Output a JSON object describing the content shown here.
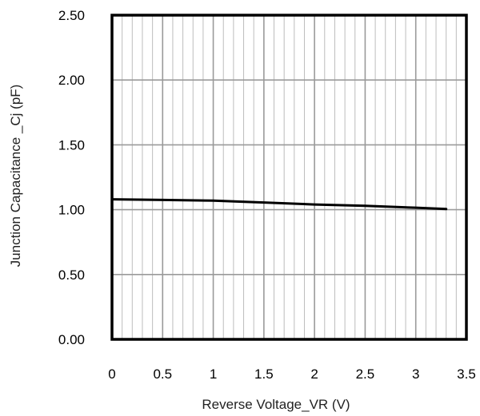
{
  "chart_data": {
    "type": "line",
    "title": "",
    "xlabel": "Reverse Voltage_VR (V)",
    "ylabel": "Junction Capacitance _Cj (pF)",
    "xlim": [
      0,
      3.5
    ],
    "ylim": [
      0,
      2.5
    ],
    "x_ticks": [
      "0",
      "0.5",
      "1",
      "1.5",
      "2",
      "2.5",
      "3",
      "3.5"
    ],
    "x_tick_values": [
      0,
      0.5,
      1,
      1.5,
      2,
      2.5,
      3,
      3.5
    ],
    "y_ticks": [
      "0.00",
      "0.50",
      "1.00",
      "1.50",
      "2.00",
      "2.50"
    ],
    "y_tick_values": [
      0,
      0.5,
      1,
      1.5,
      2,
      2.5
    ],
    "x_minor_step": 0.1,
    "grid": true,
    "legend": "none",
    "series": [
      {
        "x": [
          0,
          0.5,
          1,
          1.5,
          2,
          2.5,
          3,
          3.3
        ],
        "values": [
          1.08,
          1.075,
          1.07,
          1.055,
          1.04,
          1.03,
          1.015,
          1.005
        ]
      }
    ]
  }
}
